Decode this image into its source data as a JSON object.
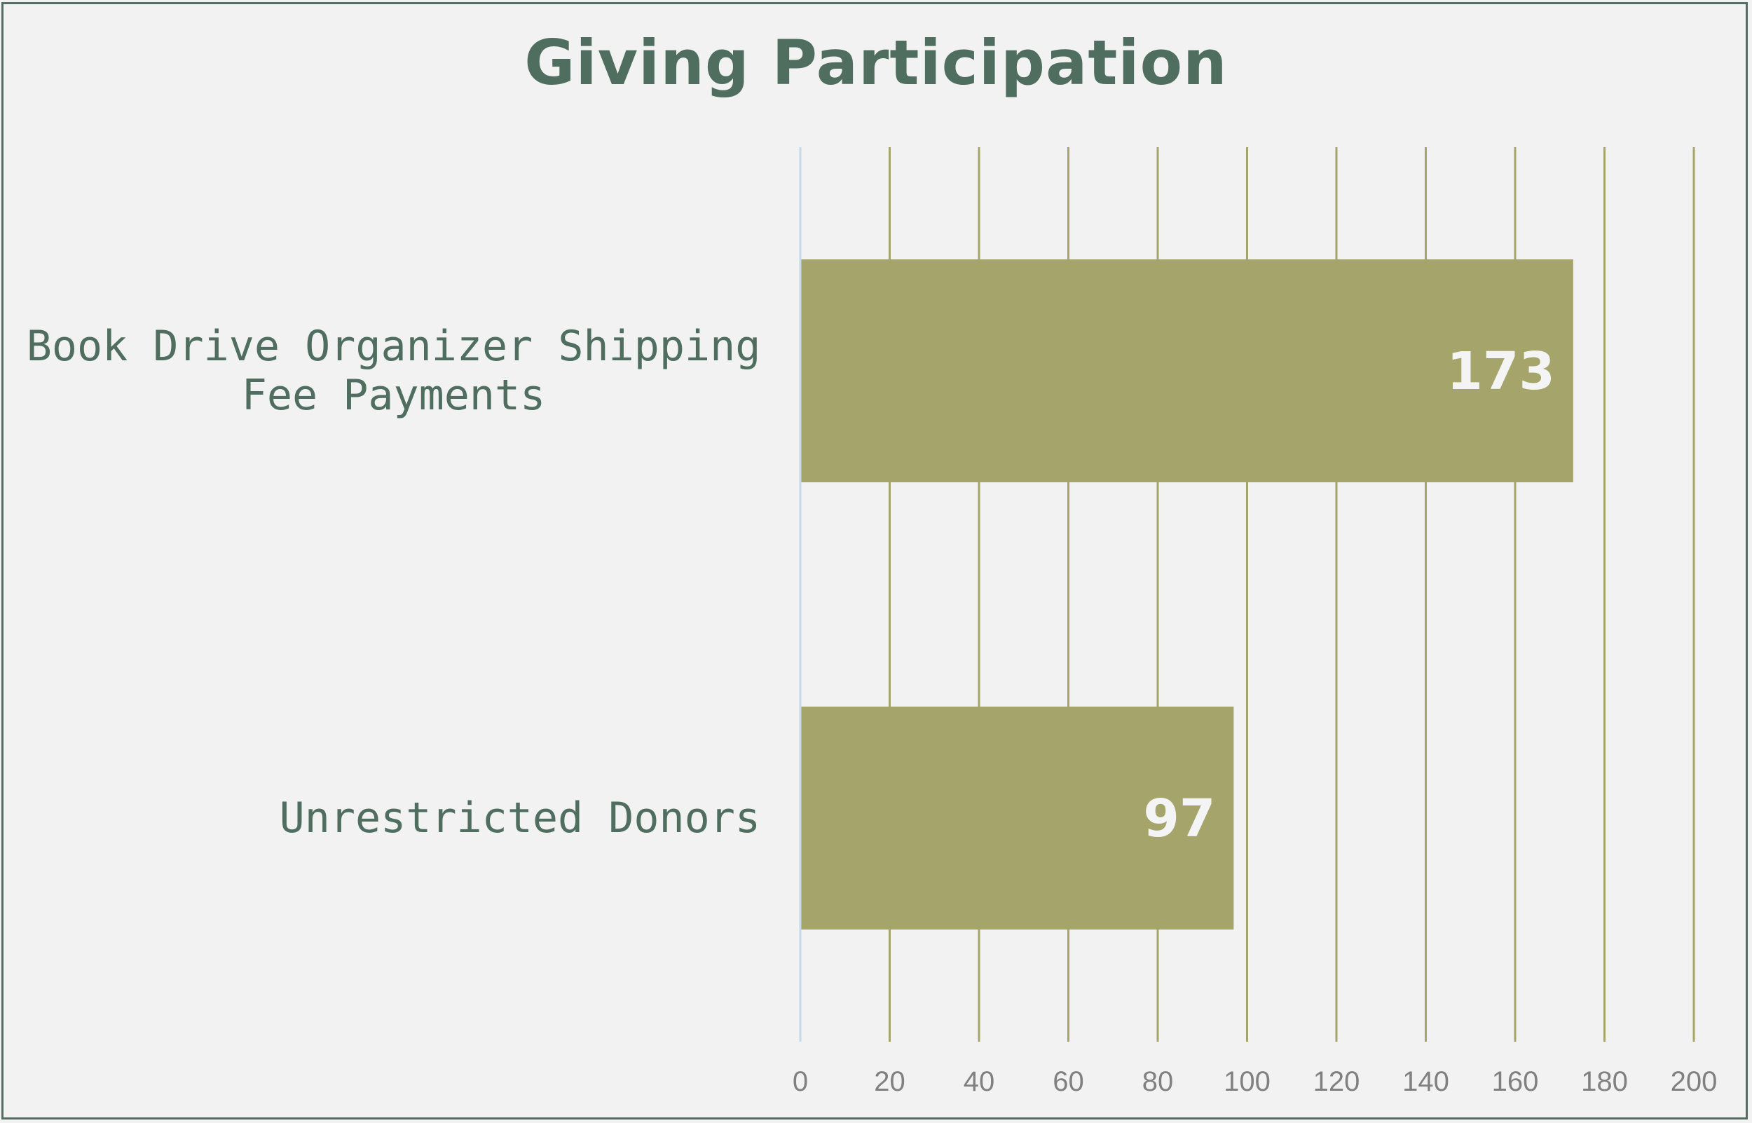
{
  "chart_data": {
    "type": "bar",
    "orientation": "horizontal",
    "title": "Giving Participation",
    "categories": [
      "Book Drive Organizer Shipping Fee Payments",
      "Unrestricted Donors"
    ],
    "category_label_lines": [
      [
        "Book Drive Organizer Shipping",
        "Fee Payments"
      ],
      [
        "Unrestricted Donors"
      ]
    ],
    "values": [
      173,
      97
    ],
    "data_labels": [
      "173",
      "97"
    ],
    "xlim": [
      0,
      200
    ],
    "x_ticks": [
      "0",
      "20",
      "40",
      "60",
      "80",
      "100",
      "120",
      "140",
      "160",
      "180",
      "200"
    ],
    "xlabel": "",
    "ylabel": "",
    "grid": "vertical",
    "legend": "none",
    "colors": {
      "bar": "#a5a56b",
      "grid": "#a5a56b",
      "axis": "#c5d9ec",
      "title": "#4f6e60",
      "category_text": "#4f6e60",
      "tick_text": "#808080",
      "value_text": "#f4f4f4",
      "background": "#f2f2f2",
      "border": "#566e62"
    }
  }
}
